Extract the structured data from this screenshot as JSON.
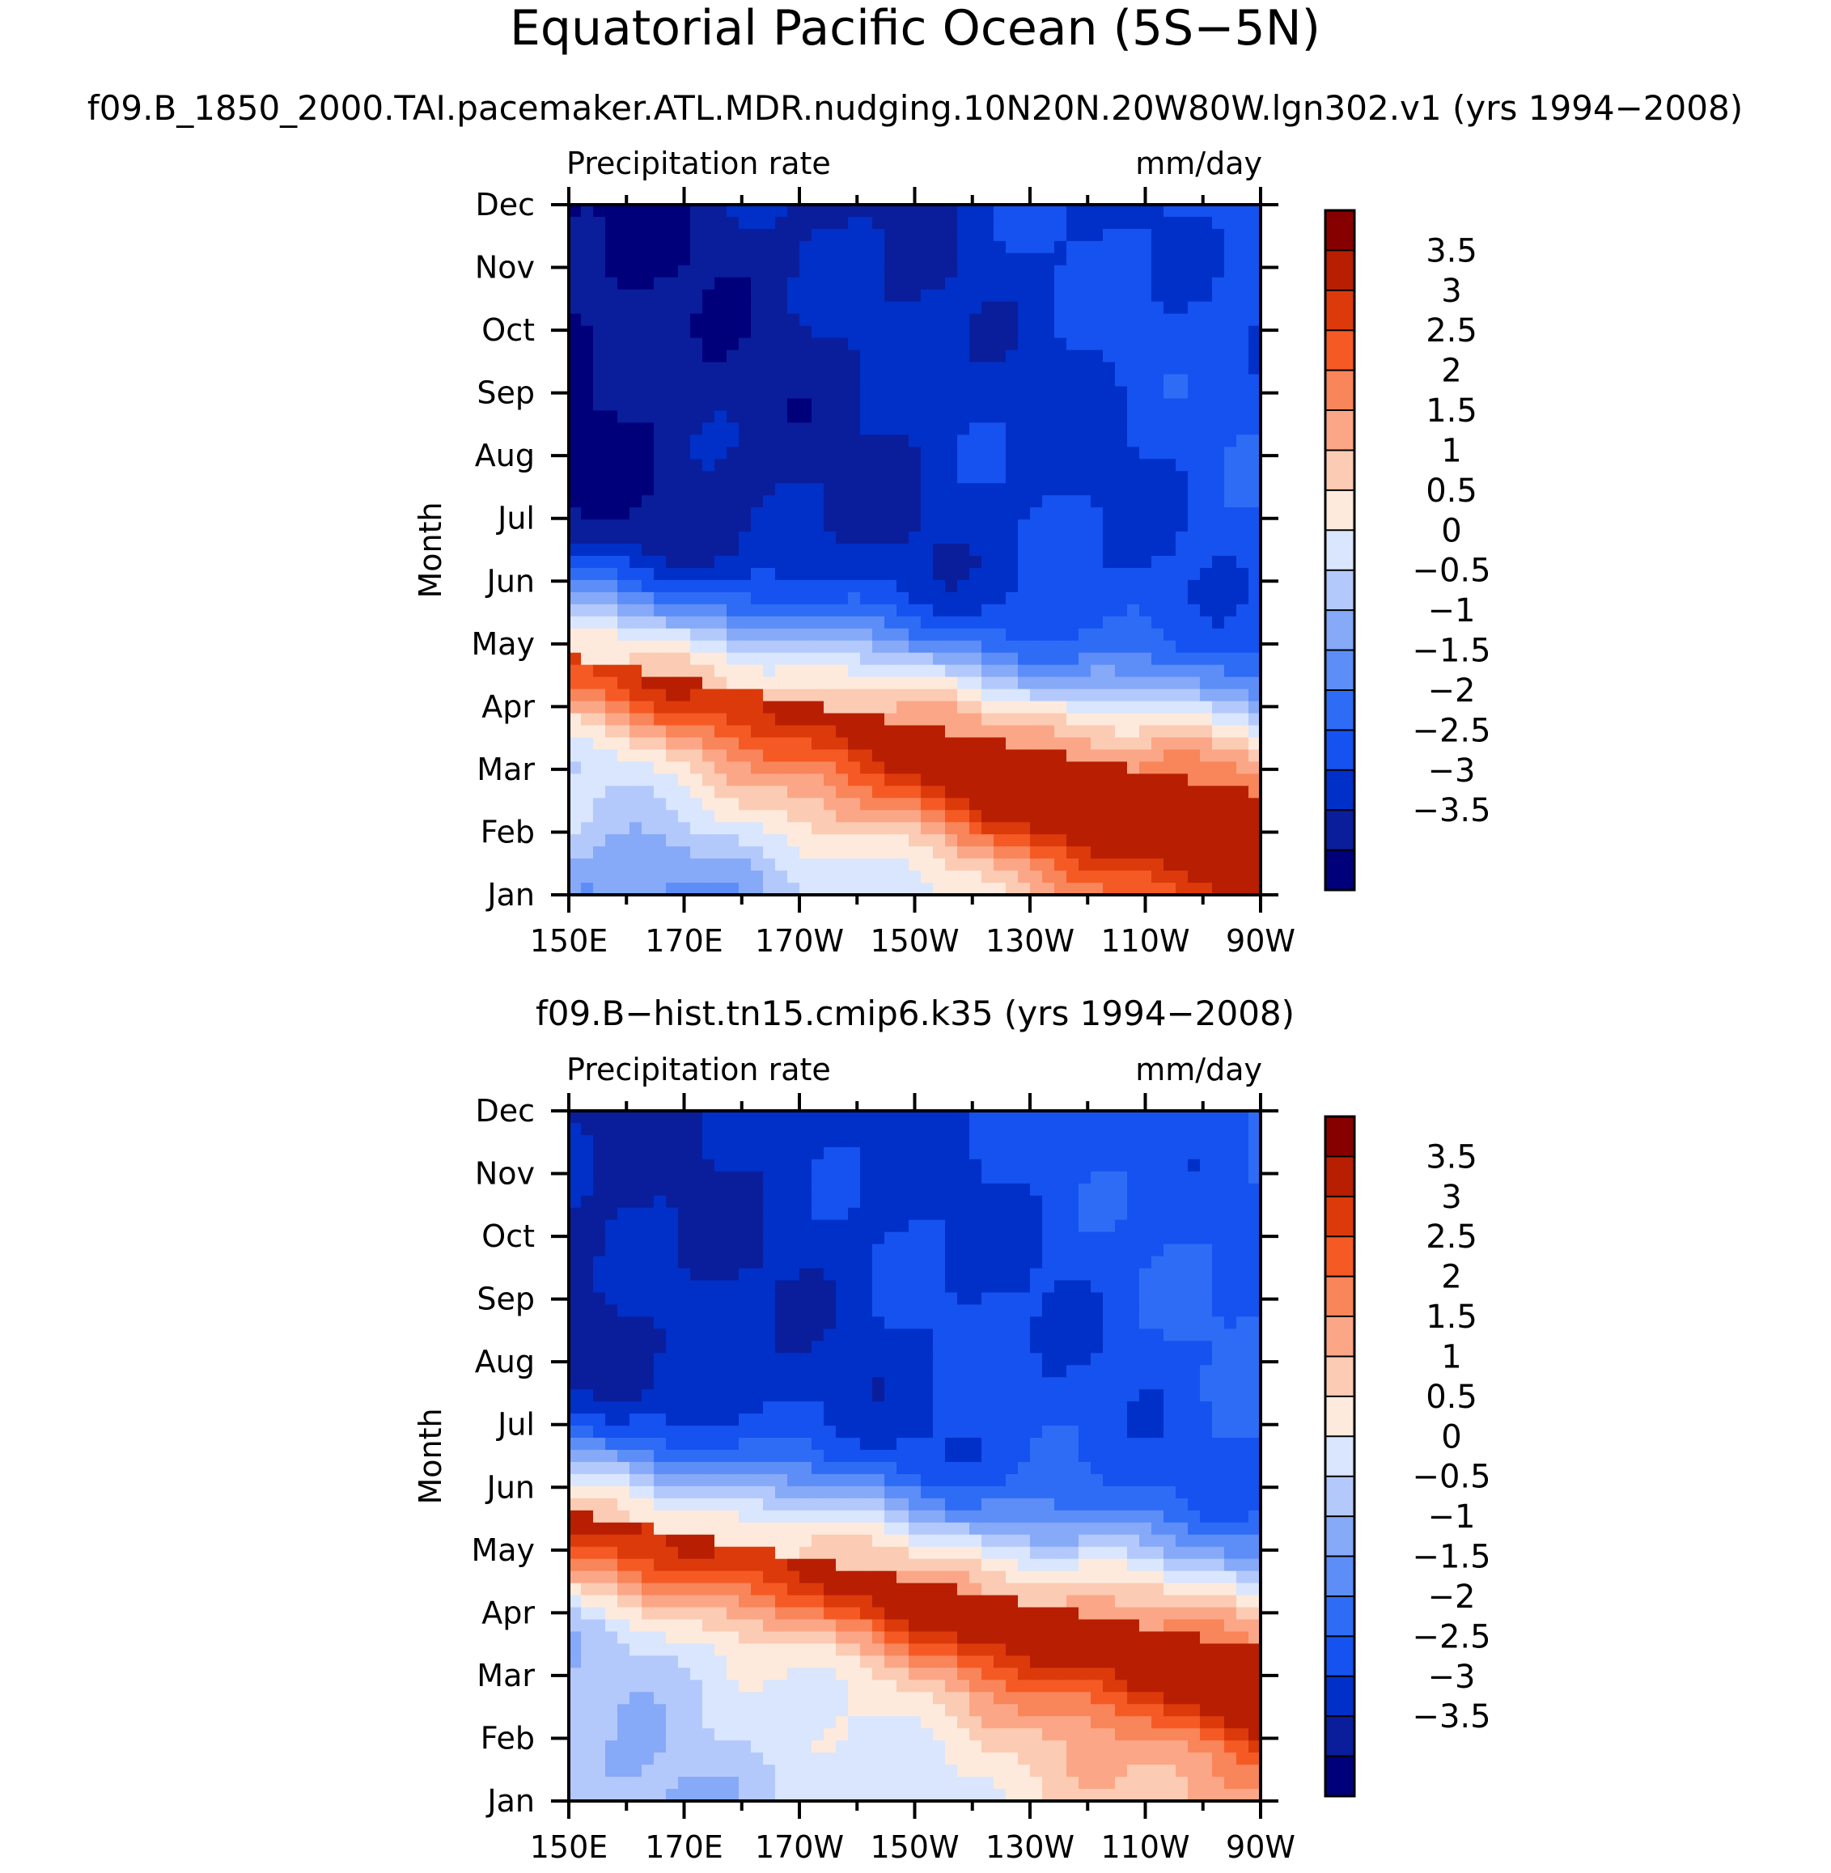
{
  "page": {
    "title": "Equatorial Pacific Ocean (5S−5N)"
  },
  "colors": {
    "levels": [
      "#00007a",
      "#0a1e9c",
      "#0030c8",
      "#1552f0",
      "#2e6cf5",
      "#5d8ef7",
      "#86a9f8",
      "#b4c9fb",
      "#d9e6fd",
      "#fdeadc",
      "#fccbb4",
      "#fba787",
      "#f9855a",
      "#f55a25",
      "#dc3a0a",
      "#b81e02",
      "#870000"
    ]
  },
  "chart_data": [
    {
      "type": "heatmap",
      "title": "f09.B_1850_2000.TAI.pacemaker.ATL.MDR.nudging.10N20N.20W80W.lgn302.v1 (yrs 1994−2008)",
      "left_label": "Precipitation rate",
      "right_label": "mm/day",
      "ylabel": "Month",
      "x_ticks": [
        "150E",
        "170E",
        "170W",
        "150W",
        "130W",
        "110W",
        "90W"
      ],
      "y_ticks": [
        "Jan",
        "Feb",
        "Mar",
        "Apr",
        "May",
        "Jun",
        "Jul",
        "Aug",
        "Sep",
        "Oct",
        "Nov",
        "Dec"
      ],
      "colorbar_labels": [
        "3.5",
        "3",
        "2.5",
        "2",
        "1.5",
        "1",
        "0.5",
        "0",
        "−0.5",
        "−1",
        "−1.5",
        "−2",
        "−2.5",
        "−3",
        "−3.5"
      ],
      "levels": [
        -4,
        -3.5,
        -3,
        -2.5,
        -2,
        -1.5,
        -1,
        -0.5,
        0,
        0.5,
        1,
        1.5,
        2,
        2.5,
        3,
        3.5,
        4
      ],
      "band": {
        "mon_west": 4.8,
        "mon_east": 2.6,
        "width": 1.35,
        "amp": 4.4
      },
      "winter": {
        "west": -1.3,
        "east": 3.2
      },
      "autumn": {
        "west": -3.6,
        "east": -2.2
      },
      "max_month": [
        5.4,
        5.1,
        4.6,
        4.0,
        3.6,
        3.2,
        2.7
      ],
      "spring_west": [
        1.2,
        1.0,
        1.2,
        1.4,
        1.6,
        1.8,
        2.0
      ]
    },
    {
      "type": "heatmap",
      "title": "f09.B−hist.tn15.cmip6.k35 (yrs 1994−2008)",
      "left_label": "Precipitation rate",
      "right_label": "mm/day",
      "ylabel": "Month",
      "x_ticks": [
        "150E",
        "170E",
        "170W",
        "150W",
        "130W",
        "110W",
        "90W"
      ],
      "y_ticks": [
        "Jan",
        "Feb",
        "Mar",
        "Apr",
        "May",
        "Jun",
        "Jul",
        "Aug",
        "Sep",
        "Oct",
        "Nov",
        "Dec"
      ],
      "colorbar_labels": [
        "3.5",
        "3",
        "2.5",
        "2",
        "1.5",
        "1",
        "0.5",
        "0",
        "−0.5",
        "−1",
        "−1.5",
        "−2",
        "−2.5",
        "−3",
        "−3.5"
      ],
      "levels": [
        -4,
        -3.5,
        -3,
        -2.5,
        -2,
        -1.5,
        -1,
        -0.5,
        0,
        0.5,
        1,
        1.5,
        2,
        2.5,
        3,
        3.5,
        4
      ],
      "band": {
        "mon_west": 5.6,
        "mon_east": 3.4,
        "width": 1.3,
        "amp": 4.0
      },
      "winter": {
        "west": -0.6,
        "east": 2.0
      },
      "autumn": {
        "west": -3.2,
        "east": -2.0
      },
      "max_month": [
        5.5,
        5.3,
        5.0,
        4.7,
        4.4,
        4.0,
        3.5
      ],
      "spring_west": [
        0.4,
        0.3,
        0.5,
        0.6,
        0.8,
        1.2,
        1.5
      ]
    }
  ]
}
